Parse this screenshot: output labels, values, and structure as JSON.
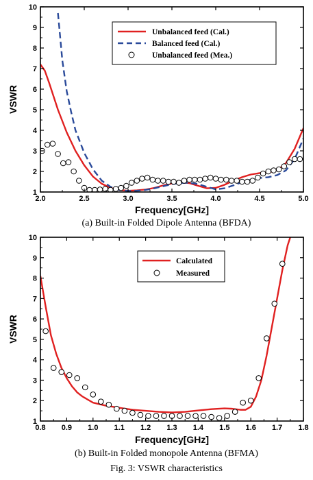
{
  "chart_data": [
    {
      "type": "line",
      "caption": "(a) Built-in Folded Dipole Antenna (BFDA)",
      "xlabel": "Frequency[GHz]",
      "ylabel": "VSWR",
      "xlim": [
        2.0,
        5.0
      ],
      "ylim": [
        1,
        10
      ],
      "xticks": [
        "2.0",
        "2.5",
        "3.0",
        "3.5",
        "4.0",
        "4.5",
        "5.0"
      ],
      "yticks": [
        "1",
        "2",
        "3",
        "4",
        "5",
        "6",
        "7",
        "8",
        "9",
        "10"
      ],
      "legend_position": "top-right",
      "series": [
        {
          "name": "Unbalanced feed (Cal.)",
          "style": "solid",
          "color": "#e02020",
          "x": [
            2.0,
            2.05,
            2.1,
            2.2,
            2.3,
            2.4,
            2.5,
            2.6,
            2.7,
            2.8,
            2.9,
            3.0,
            3.1,
            3.2,
            3.3,
            3.4,
            3.5,
            3.6,
            3.7,
            3.8,
            3.9,
            4.0,
            4.1,
            4.2,
            4.3,
            4.4,
            4.5,
            4.6,
            4.7,
            4.8,
            4.9,
            5.0
          ],
          "y": [
            7.2,
            6.9,
            6.3,
            5.0,
            3.9,
            3.0,
            2.3,
            1.75,
            1.4,
            1.2,
            1.1,
            1.06,
            1.08,
            1.12,
            1.2,
            1.32,
            1.42,
            1.47,
            1.43,
            1.3,
            1.18,
            1.2,
            1.35,
            1.55,
            1.72,
            1.85,
            1.92,
            1.95,
            2.05,
            2.4,
            3.1,
            4.1
          ]
        },
        {
          "name": "Balanced feed (Cal.)",
          "style": "dashed",
          "color": "#2a4a9a",
          "x": [
            2.2,
            2.25,
            2.3,
            2.35,
            2.4,
            2.5,
            2.6,
            2.7,
            2.8,
            2.9,
            3.0,
            3.1,
            3.2,
            3.3,
            3.4,
            3.5,
            3.6,
            3.7,
            3.8,
            3.9,
            4.0,
            4.1,
            4.2,
            4.3,
            4.4,
            4.5,
            4.6,
            4.7,
            4.8,
            4.9,
            5.0
          ],
          "y": [
            9.7,
            7.4,
            5.9,
            4.9,
            4.0,
            2.9,
            2.1,
            1.55,
            1.25,
            1.1,
            1.05,
            1.06,
            1.1,
            1.18,
            1.28,
            1.38,
            1.44,
            1.45,
            1.38,
            1.25,
            1.13,
            1.18,
            1.32,
            1.48,
            1.6,
            1.68,
            1.72,
            1.82,
            2.05,
            2.6,
            3.6
          ]
        },
        {
          "name": "Unbalanced feed (Mea.)",
          "style": "circles",
          "color": "#000000",
          "x": [
            2.02,
            2.08,
            2.14,
            2.2,
            2.26,
            2.32,
            2.38,
            2.44,
            2.5,
            2.56,
            2.62,
            2.68,
            2.74,
            2.8,
            2.86,
            2.92,
            2.98,
            3.04,
            3.1,
            3.16,
            3.22,
            3.28,
            3.34,
            3.4,
            3.46,
            3.52,
            3.58,
            3.64,
            3.7,
            3.76,
            3.82,
            3.88,
            3.94,
            4.0,
            4.06,
            4.12,
            4.18,
            4.24,
            4.3,
            4.36,
            4.42,
            4.48,
            4.54,
            4.6,
            4.66,
            4.72,
            4.78,
            4.84,
            4.9,
            4.96
          ],
          "y": [
            3.0,
            3.3,
            3.35,
            2.85,
            2.4,
            2.45,
            2.0,
            1.55,
            1.2,
            1.1,
            1.1,
            1.12,
            1.15,
            1.1,
            1.15,
            1.2,
            1.3,
            1.45,
            1.55,
            1.65,
            1.7,
            1.6,
            1.55,
            1.55,
            1.5,
            1.5,
            1.45,
            1.55,
            1.6,
            1.6,
            1.6,
            1.65,
            1.7,
            1.65,
            1.6,
            1.6,
            1.55,
            1.55,
            1.5,
            1.5,
            1.55,
            1.7,
            1.9,
            2.0,
            2.05,
            2.1,
            2.25,
            2.45,
            2.6,
            2.6
          ]
        }
      ]
    },
    {
      "type": "line",
      "caption": "(b) Built-in Folded monopole Antenna (BFMA)",
      "xlabel": "Frequency[GHz]",
      "ylabel": "VSWR",
      "xlim": [
        0.8,
        1.8
      ],
      "ylim": [
        1,
        10
      ],
      "xticks": [
        "0.8",
        "0.9",
        "1.0",
        "1.1",
        "1.2",
        "1.3",
        "1.4",
        "1.5",
        "1.6",
        "1.7",
        "1.8"
      ],
      "yticks": [
        "1",
        "2",
        "3",
        "4",
        "5",
        "6",
        "7",
        "8",
        "9",
        "10"
      ],
      "legend_position": "top-center",
      "series": [
        {
          "name": "Calculated",
          "style": "solid",
          "color": "#e02020",
          "x": [
            0.8,
            0.82,
            0.84,
            0.86,
            0.88,
            0.9,
            0.92,
            0.94,
            0.96,
            0.98,
            1.0,
            1.05,
            1.1,
            1.15,
            1.2,
            1.25,
            1.3,
            1.35,
            1.4,
            1.45,
            1.5,
            1.53,
            1.56,
            1.58,
            1.6,
            1.62,
            1.64,
            1.66,
            1.68,
            1.7,
            1.72,
            1.74,
            1.75
          ],
          "y": [
            8.1,
            6.6,
            5.2,
            4.3,
            3.6,
            3.1,
            2.7,
            2.4,
            2.2,
            2.05,
            1.9,
            1.75,
            1.65,
            1.55,
            1.5,
            1.45,
            1.42,
            1.45,
            1.52,
            1.58,
            1.62,
            1.6,
            1.55,
            1.55,
            1.7,
            2.2,
            3.0,
            4.2,
            5.6,
            7.0,
            8.4,
            9.6,
            10.0
          ]
        },
        {
          "name": "Measured",
          "style": "circles",
          "color": "#000000",
          "x": [
            0.82,
            0.85,
            0.88,
            0.91,
            0.94,
            0.97,
            1.0,
            1.03,
            1.06,
            1.09,
            1.12,
            1.15,
            1.18,
            1.21,
            1.24,
            1.27,
            1.3,
            1.33,
            1.36,
            1.39,
            1.42,
            1.45,
            1.48,
            1.51,
            1.54,
            1.57,
            1.6,
            1.63,
            1.66,
            1.69,
            1.72
          ],
          "y": [
            5.4,
            3.6,
            3.4,
            3.25,
            3.1,
            2.65,
            2.3,
            1.95,
            1.8,
            1.6,
            1.5,
            1.4,
            1.3,
            1.25,
            1.25,
            1.25,
            1.25,
            1.25,
            1.25,
            1.25,
            1.25,
            1.2,
            1.15,
            1.25,
            1.45,
            1.9,
            2.0,
            3.1,
            5.05,
            6.75,
            8.7
          ]
        }
      ]
    }
  ],
  "figure_caption": "Fig. 3: VSWR characteristics"
}
